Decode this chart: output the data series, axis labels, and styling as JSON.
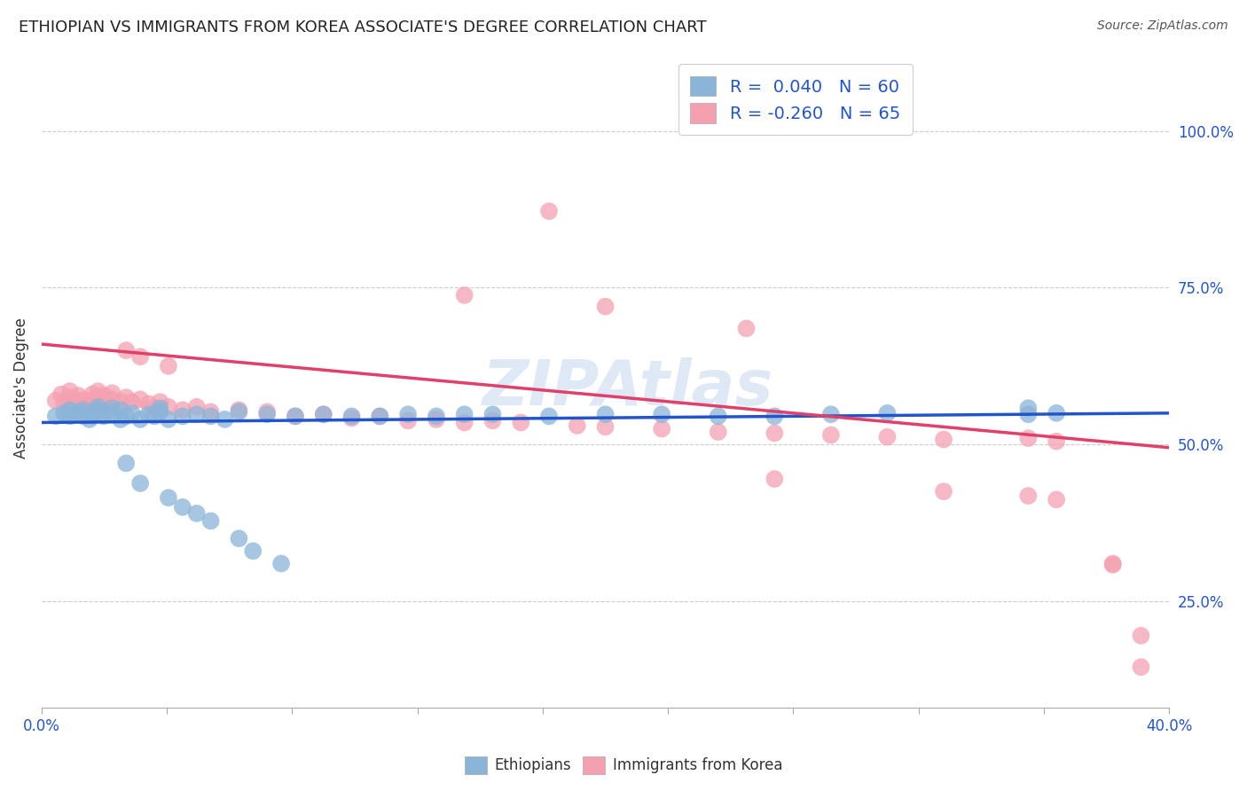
{
  "title": "ETHIOPIAN VS IMMIGRANTS FROM KOREA ASSOCIATE'S DEGREE CORRELATION CHART",
  "source": "Source: ZipAtlas.com",
  "ylabel": "Associate's Degree",
  "watermark": "ZIPAtlas",
  "legend_blue_label": "R =  0.040   N = 60",
  "legend_pink_label": "R = -0.260   N = 65",
  "blue_color": "#8ab4d8",
  "pink_color": "#f4a0b0",
  "blue_line_color": "#2255cc",
  "pink_line_color": "#e0406a",
  "grid_color": "#cccccc",
  "background_color": "#ffffff",
  "title_color": "#222222",
  "right_tick_color": "#2255cc",
  "bottom_label_color": "#2255cc",
  "xlim": [
    0,
    4.0
  ],
  "ylim": [
    0.08,
    1.1
  ],
  "blue_trend": [
    0.535,
    0.55
  ],
  "pink_trend": [
    0.66,
    0.495
  ],
  "right_yticks": [
    0.25,
    0.5,
    0.75,
    1.0
  ],
  "right_ytick_labels": [
    "25.0%",
    "50.0%",
    "75.0%",
    "100.0%"
  ],
  "xtick_positions": [
    0.0,
    0.4444,
    0.8889,
    1.3333,
    1.7778,
    2.2222,
    2.6667,
    3.1111,
    3.5556,
    4.0
  ],
  "blue_x": [
    0.05,
    0.08,
    0.1,
    0.1,
    0.12,
    0.13,
    0.15,
    0.15,
    0.17,
    0.18,
    0.18,
    0.2,
    0.2,
    0.22,
    0.22,
    0.25,
    0.25,
    0.28,
    0.28,
    0.3,
    0.32,
    0.35,
    0.38,
    0.4,
    0.42,
    0.42,
    0.45,
    0.5,
    0.55,
    0.6,
    0.65,
    0.7,
    0.8,
    0.9,
    1.0,
    1.1,
    1.2,
    1.3,
    1.4,
    1.5,
    1.6,
    1.8,
    2.0,
    2.2,
    2.4,
    2.6,
    2.8,
    3.0,
    3.5,
    3.5,
    3.6,
    0.3,
    0.35,
    0.45,
    0.5,
    0.55,
    0.6,
    0.7,
    0.75,
    0.85
  ],
  "blue_y": [
    0.545,
    0.55,
    0.545,
    0.555,
    0.548,
    0.552,
    0.545,
    0.555,
    0.54,
    0.55,
    0.545,
    0.555,
    0.56,
    0.545,
    0.552,
    0.548,
    0.558,
    0.54,
    0.555,
    0.545,
    0.55,
    0.54,
    0.548,
    0.545,
    0.552,
    0.558,
    0.54,
    0.545,
    0.548,
    0.545,
    0.54,
    0.552,
    0.548,
    0.545,
    0.548,
    0.545,
    0.545,
    0.548,
    0.545,
    0.548,
    0.548,
    0.545,
    0.548,
    0.548,
    0.545,
    0.545,
    0.548,
    0.55,
    0.558,
    0.548,
    0.55,
    0.47,
    0.438,
    0.415,
    0.4,
    0.39,
    0.378,
    0.35,
    0.33,
    0.31
  ],
  "pink_x": [
    0.05,
    0.07,
    0.08,
    0.1,
    0.1,
    0.12,
    0.13,
    0.15,
    0.15,
    0.17,
    0.18,
    0.18,
    0.2,
    0.2,
    0.22,
    0.22,
    0.25,
    0.25,
    0.28,
    0.3,
    0.32,
    0.35,
    0.38,
    0.4,
    0.42,
    0.45,
    0.5,
    0.55,
    0.6,
    0.7,
    0.8,
    0.9,
    1.0,
    1.1,
    1.2,
    1.3,
    1.4,
    1.5,
    1.6,
    1.7,
    1.8,
    1.9,
    2.0,
    2.2,
    2.4,
    2.6,
    2.8,
    3.0,
    3.2,
    3.5,
    3.6,
    3.8,
    3.9,
    0.3,
    0.35,
    0.45,
    1.5,
    2.0,
    2.5,
    2.6,
    3.2,
    3.5,
    3.6,
    3.8,
    3.9
  ],
  "pink_y": [
    0.57,
    0.58,
    0.565,
    0.575,
    0.585,
    0.57,
    0.578,
    0.56,
    0.572,
    0.565,
    0.58,
    0.57,
    0.575,
    0.585,
    0.565,
    0.578,
    0.572,
    0.582,
    0.568,
    0.575,
    0.568,
    0.572,
    0.565,
    0.558,
    0.568,
    0.56,
    0.555,
    0.56,
    0.552,
    0.555,
    0.552,
    0.545,
    0.548,
    0.542,
    0.545,
    0.538,
    0.54,
    0.535,
    0.538,
    0.535,
    0.872,
    0.53,
    0.528,
    0.525,
    0.52,
    0.518,
    0.515,
    0.512,
    0.508,
    0.51,
    0.505,
    0.31,
    0.195,
    0.65,
    0.64,
    0.625,
    0.738,
    0.72,
    0.685,
    0.445,
    0.425,
    0.418,
    0.412,
    0.308,
    0.145
  ]
}
